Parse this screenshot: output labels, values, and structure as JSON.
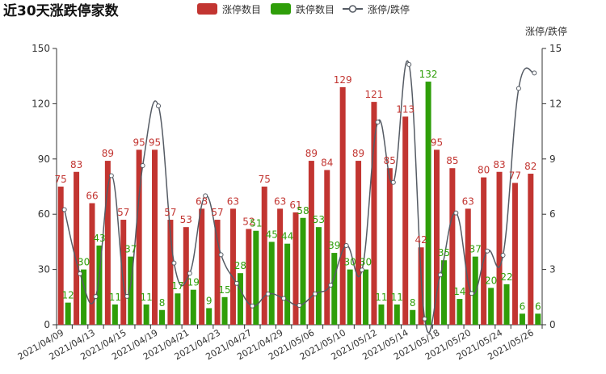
{
  "colors": {
    "limit_up": "#c23531",
    "limit_down": "#2f9e09",
    "ratio": "#555b64"
  },
  "chart_data": {
    "type": "bar",
    "title": "近30天涨跌停家数",
    "legend": {
      "placement": "top-center",
      "items": [
        "涨停数目",
        "跌停数目",
        "涨停/跌停"
      ]
    },
    "y_left": {
      "min": 0,
      "max": 150,
      "ticks": [
        "0",
        "30",
        "60",
        "90",
        "120",
        "150"
      ]
    },
    "y_right": {
      "name": "涨停/跌停",
      "min": 0,
      "max": 15,
      "ticks": [
        "0",
        "3",
        "6",
        "9",
        "12",
        "15"
      ]
    },
    "x_tick_labels": [
      "2021/04/09",
      "2021/04/13",
      "2021/04/15",
      "2021/04/19",
      "2021/04/21",
      "2021/04/23",
      "2021/04/27",
      "2021/04/29",
      "2021/05/06",
      "2021/05/10",
      "2021/05/12",
      "2021/05/14",
      "2021/05/18",
      "2021/05/20",
      "2021/05/24",
      "2021/05/26"
    ],
    "series": [
      {
        "name": "涨停数目",
        "type": "bar",
        "values": [
          75,
          83,
          66,
          89,
          57,
          95,
          95,
          57,
          53,
          63,
          57,
          63,
          52,
          75,
          63,
          61,
          89,
          84,
          129,
          89,
          121,
          85,
          113,
          42,
          95,
          85,
          63,
          80,
          83,
          77,
          82
        ]
      },
      {
        "name": "跌停数目",
        "type": "bar",
        "values": [
          12,
          30,
          43,
          11,
          37,
          11,
          8,
          17,
          19,
          9,
          15,
          28,
          51,
          45,
          44,
          58,
          53,
          39,
          30,
          30,
          11,
          11,
          8,
          132,
          35,
          14,
          37,
          20,
          22,
          6,
          6
        ]
      },
      {
        "name": "涨停/跌停",
        "type": "line",
        "axis": "right",
        "values": [
          6.25,
          2.77,
          1.53,
          8.09,
          1.54,
          8.64,
          11.88,
          3.35,
          2.79,
          7.0,
          3.8,
          2.25,
          1.02,
          1.67,
          1.43,
          1.05,
          1.68,
          2.15,
          4.3,
          2.97,
          11.0,
          7.73,
          14.13,
          0.32,
          2.71,
          6.07,
          1.7,
          4.0,
          3.77,
          12.83,
          13.67
        ]
      }
    ]
  }
}
